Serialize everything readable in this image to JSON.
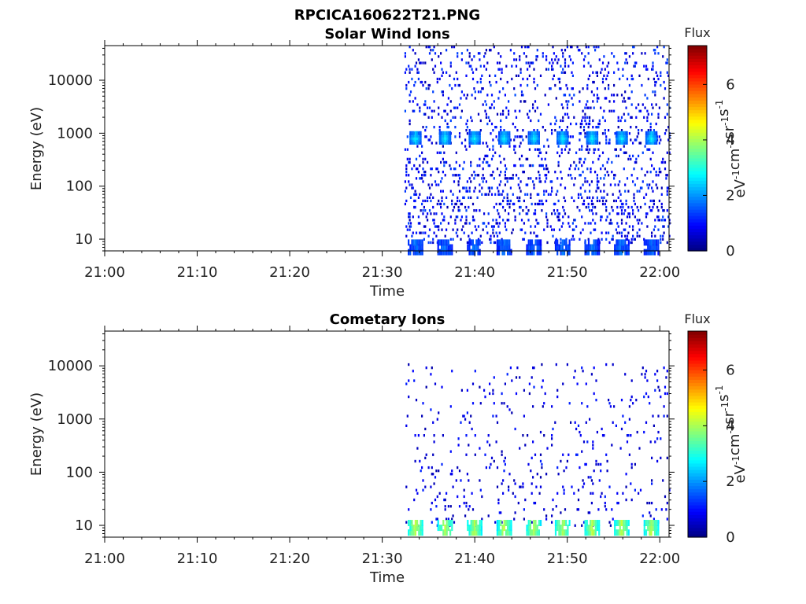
{
  "figure_title": "RPCICA160622T21.PNG",
  "chart_data": [
    {
      "type": "heatmap",
      "title": "Solar Wind Ions",
      "xlabel": "Time",
      "ylabel": "Energy (eV)",
      "x_ticks": [
        "21:00",
        "21:10",
        "21:20",
        "21:30",
        "21:40",
        "21:50",
        "22:00"
      ],
      "xlim_minutes": [
        0,
        61
      ],
      "y_ticks": [
        "10",
        "100",
        "1000",
        "10000"
      ],
      "ylim": [
        6,
        45000
      ],
      "y_scale": "log",
      "colorbar": {
        "label": "Flux",
        "unit": "eV-1cm-2sr-1s-1",
        "ticks": [
          "0",
          "2",
          "4",
          "6"
        ],
        "range": [
          0,
          7.4
        ],
        "colormap": "jet"
      },
      "data_start_minute": 32.4,
      "data_end_minute": 61,
      "periodic_peaks": {
        "energy_eV": 800,
        "flux": 2.6,
        "times_minutes": [
          33.5,
          36.7,
          39.9,
          43.1,
          46.3,
          49.4,
          52.6,
          55.8,
          59.0
        ]
      },
      "low_energy_bursts": {
        "energy_eV": 7,
        "flux": 1.4,
        "times_minutes": [
          33.5,
          36.7,
          39.9,
          43.1,
          46.3,
          49.4,
          52.6,
          55.8,
          59.0
        ]
      },
      "background_scatter": {
        "energy_range": [
          7,
          40000
        ],
        "flux_range": [
          0.3,
          1.5
        ],
        "density": 0.1
      }
    },
    {
      "type": "heatmap",
      "title": "Cometary Ions",
      "xlabel": "Time",
      "ylabel": "Energy (eV)",
      "x_ticks": [
        "21:00",
        "21:10",
        "21:20",
        "21:30",
        "21:40",
        "21:50",
        "22:00"
      ],
      "xlim_minutes": [
        0,
        61
      ],
      "y_ticks": [
        "10",
        "100",
        "1000",
        "10000"
      ],
      "ylim": [
        6,
        45000
      ],
      "y_scale": "log",
      "colorbar": {
        "label": "Flux",
        "unit": "eV-1cm-2sr-1s-1",
        "ticks": [
          "0",
          "2",
          "4",
          "6"
        ],
        "range": [
          0,
          7.4
        ],
        "colormap": "jet"
      },
      "data_start_minute": 32.4,
      "data_end_minute": 61,
      "low_energy_bursts": {
        "energy_eV": 9,
        "flux": 3.8,
        "times_minutes": [
          33.5,
          36.7,
          39.9,
          43.1,
          46.3,
          49.4,
          52.6,
          55.8,
          59.0
        ]
      },
      "background_scatter": {
        "energy_range": [
          8,
          10000
        ],
        "flux_range": [
          0.3,
          1.2
        ],
        "density": 0.035
      }
    }
  ]
}
